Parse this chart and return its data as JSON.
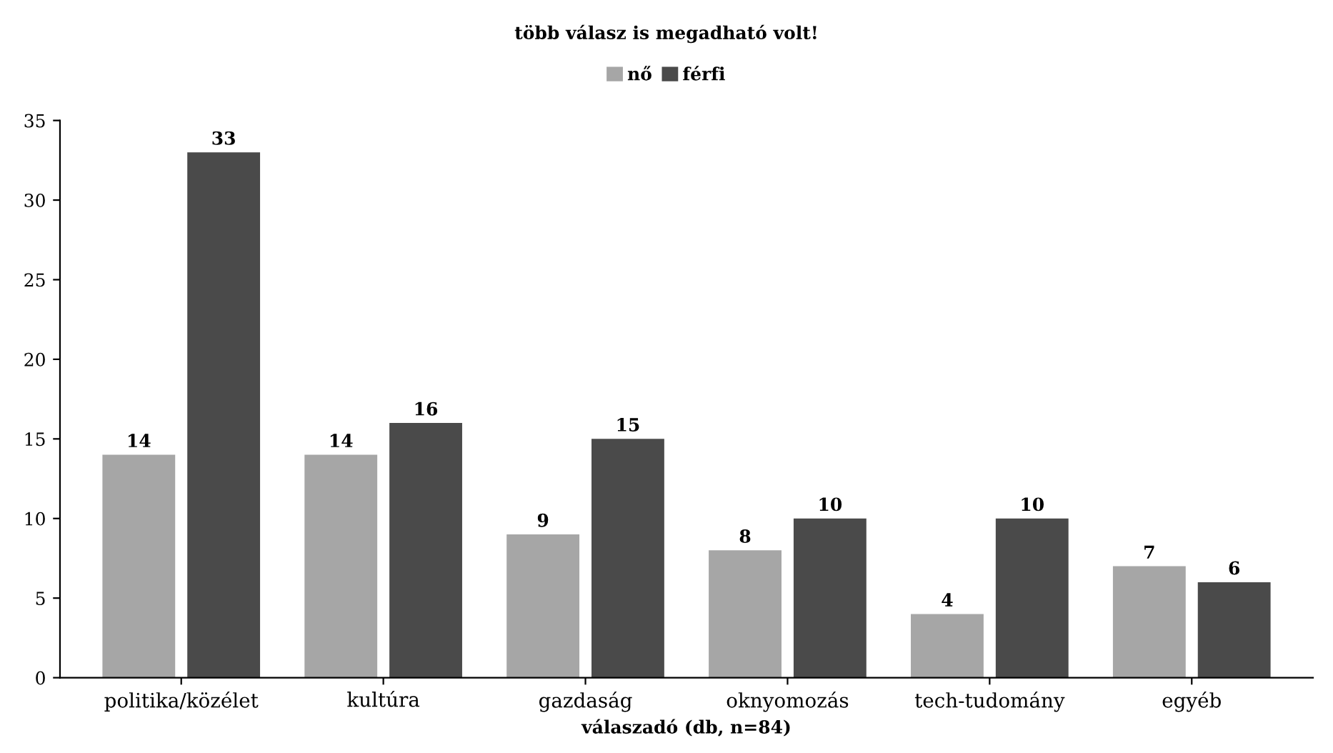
{
  "chart_data": {
    "type": "bar",
    "title": "több válasz is megadható volt!",
    "xlabel": "válaszadó (db, n=84)",
    "categories": [
      "politika/közélet",
      "kultúra",
      "gazdaság",
      "oknyomozás",
      "tech-tudomány",
      "egyéb"
    ],
    "series": [
      {
        "name": "nő",
        "color": "#a6a6a6",
        "values": [
          14,
          14,
          9,
          8,
          4,
          7
        ]
      },
      {
        "name": "férfi",
        "color": "#4a4a4a",
        "values": [
          33,
          16,
          15,
          10,
          10,
          6
        ]
      }
    ],
    "ylim": [
      0,
      35
    ],
    "yticks": [
      0,
      5,
      10,
      15,
      20,
      25,
      30,
      35
    ],
    "grid": false,
    "legend": "top",
    "data_labels": true
  }
}
